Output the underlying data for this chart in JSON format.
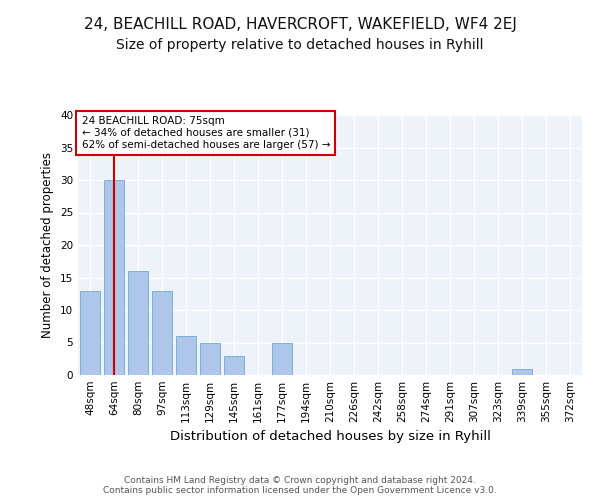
{
  "title1": "24, BEACHILL ROAD, HAVERCROFT, WAKEFIELD, WF4 2EJ",
  "title2": "Size of property relative to detached houses in Ryhill",
  "xlabel": "Distribution of detached houses by size in Ryhill",
  "ylabel": "Number of detached properties",
  "categories": [
    "48sqm",
    "64sqm",
    "80sqm",
    "97sqm",
    "113sqm",
    "129sqm",
    "145sqm",
    "161sqm",
    "177sqm",
    "194sqm",
    "210sqm",
    "226sqm",
    "242sqm",
    "258sqm",
    "274sqm",
    "291sqm",
    "307sqm",
    "323sqm",
    "339sqm",
    "355sqm",
    "372sqm"
  ],
  "values": [
    13,
    30,
    16,
    13,
    6,
    5,
    3,
    0,
    5,
    0,
    0,
    0,
    0,
    0,
    0,
    0,
    0,
    0,
    1,
    0,
    0
  ],
  "bar_color": "#aec6e8",
  "bar_edge_color": "#5a9fd4",
  "annotation_title": "24 BEACHILL ROAD: 75sqm",
  "annotation_line1": "← 34% of detached houses are smaller (31)",
  "annotation_line2": "62% of semi-detached houses are larger (57) →",
  "annotation_box_color": "#ffffff",
  "annotation_box_edge": "#cc0000",
  "red_line_color": "#cc0000",
  "ylim": [
    0,
    40
  ],
  "yticks": [
    0,
    5,
    10,
    15,
    20,
    25,
    30,
    35,
    40
  ],
  "footer": "Contains HM Land Registry data © Crown copyright and database right 2024.\nContains public sector information licensed under the Open Government Licence v3.0.",
  "bg_color": "#eef2f9",
  "grid_color": "#ffffff",
  "title1_fontsize": 11,
  "title2_fontsize": 10,
  "xlabel_fontsize": 9.5,
  "ylabel_fontsize": 8.5,
  "tick_fontsize": 7.5,
  "footer_fontsize": 6.5
}
